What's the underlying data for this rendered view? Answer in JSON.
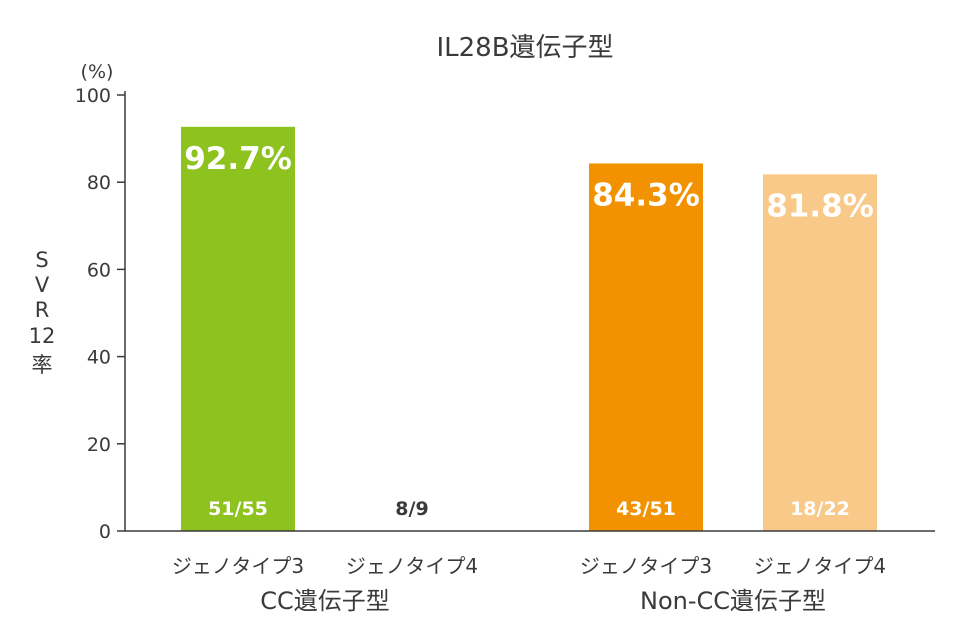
{
  "chart_data": {
    "type": "bar",
    "title": "IL28B遺伝子型",
    "unit_label": "(%)",
    "ylabel_chars": [
      "S",
      "V",
      "R",
      "12",
      "率"
    ],
    "ylim": [
      0,
      100
    ],
    "yticks": [
      "0",
      "20",
      "40",
      "60",
      "80",
      "100"
    ],
    "grid": false,
    "groups": [
      {
        "name": "CC遺伝子型",
        "bars": [
          {
            "category": "ジェノタイプ3",
            "value": 92.7,
            "value_label": "92.7%",
            "fraction": "51/55",
            "color": "#8dc21f",
            "fraction_color": "#ffffff"
          },
          {
            "category": "ジェノタイプ4",
            "value": null,
            "value_label": "",
            "fraction": "8/9",
            "color": "#ffffff",
            "fraction_color": "#3a3a3a"
          }
        ]
      },
      {
        "name": "Non-CC遺伝子型",
        "bars": [
          {
            "category": "ジェノタイプ3",
            "value": 84.3,
            "value_label": "84.3%",
            "fraction": "43/51",
            "color": "#f39200",
            "fraction_color": "#ffffff"
          },
          {
            "category": "ジェノタイプ4",
            "value": 81.8,
            "value_label": "81.8%",
            "fraction": "18/22",
            "color": "#f9c98a",
            "fraction_color": "#ffffff"
          }
        ]
      }
    ],
    "axis_color": "#3a3a3a"
  }
}
